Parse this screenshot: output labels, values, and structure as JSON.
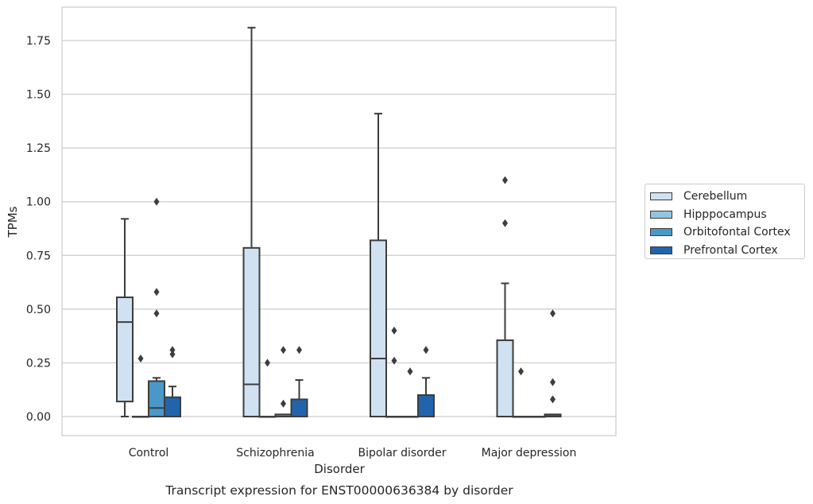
{
  "chart_data": {
    "type": "box",
    "title": "Transcript expression for ENST00000636384 by disorder",
    "xlabel": "Disorder",
    "ylabel": "TPMs",
    "ylim": [
      -0.09,
      1.9
    ],
    "yticks": [
      0.0,
      0.25,
      0.5,
      0.75,
      1.0,
      1.25,
      1.5,
      1.75
    ],
    "ytick_labels": [
      "0.00",
      "0.25",
      "0.50",
      "0.75",
      "1.00",
      "1.25",
      "1.50",
      "1.75"
    ],
    "categories": [
      "Control",
      "Schizophrenia",
      "Bipolar disorder",
      "Major depression"
    ],
    "grid": "horizontal",
    "legend_position": "right",
    "series": [
      {
        "name": "Cerebellum",
        "color": "#d0e1f2",
        "boxes": [
          {
            "whisker_low": 0.0,
            "q1": 0.07,
            "median": 0.44,
            "q3": 0.555,
            "whisker_high": 0.92,
            "outliers": []
          },
          {
            "whisker_low": 0.0,
            "q1": 0.0,
            "median": 0.15,
            "q3": 0.785,
            "whisker_high": 1.81,
            "outliers": []
          },
          {
            "whisker_low": 0.0,
            "q1": 0.0,
            "median": 0.27,
            "q3": 0.82,
            "whisker_high": 1.41,
            "outliers": []
          },
          {
            "whisker_low": 0.0,
            "q1": 0.0,
            "median": 0.0,
            "q3": 0.355,
            "whisker_high": 0.62,
            "outliers": [
              0.9,
              1.1
            ]
          }
        ]
      },
      {
        "name": "Hipppocampus",
        "color": "#94c4df",
        "boxes": [
          {
            "whisker_low": 0.0,
            "q1": 0.0,
            "median": 0.0,
            "q3": 0.0,
            "whisker_high": 0.0,
            "outliers": [
              0.27
            ]
          },
          {
            "whisker_low": 0.0,
            "q1": 0.0,
            "median": 0.0,
            "q3": 0.0,
            "whisker_high": 0.0,
            "outliers": [
              0.25
            ]
          },
          {
            "whisker_low": 0.0,
            "q1": 0.0,
            "median": 0.0,
            "q3": 0.0,
            "whisker_high": 0.0,
            "outliers": [
              0.26,
              0.4
            ]
          },
          {
            "whisker_low": 0.0,
            "q1": 0.0,
            "median": 0.0,
            "q3": 0.0,
            "whisker_high": 0.0,
            "outliers": [
              0.21
            ]
          }
        ]
      },
      {
        "name": "Orbitofontal Cortex",
        "color": "#4a98c9",
        "boxes": [
          {
            "whisker_low": 0.0,
            "q1": 0.0,
            "median": 0.04,
            "q3": 0.165,
            "whisker_high": 0.18,
            "outliers": [
              0.48,
              0.58,
              1.0
            ]
          },
          {
            "whisker_low": 0.0,
            "q1": 0.0,
            "median": 0.0,
            "q3": 0.01,
            "whisker_high": 0.01,
            "outliers": [
              0.06,
              0.31
            ]
          },
          {
            "whisker_low": 0.0,
            "q1": 0.0,
            "median": 0.0,
            "q3": 0.0,
            "whisker_high": 0.0,
            "outliers": [
              0.21
            ]
          },
          {
            "whisker_low": 0.0,
            "q1": 0.0,
            "median": 0.0,
            "q3": 0.0,
            "whisker_high": 0.0,
            "outliers": []
          }
        ]
      },
      {
        "name": "Prefrontal Cortex",
        "color": "#2164ab",
        "boxes": [
          {
            "whisker_low": 0.0,
            "q1": 0.0,
            "median": 0.0,
            "q3": 0.09,
            "whisker_high": 0.14,
            "outliers": [
              0.29,
              0.31
            ]
          },
          {
            "whisker_low": 0.0,
            "q1": 0.0,
            "median": 0.0,
            "q3": 0.08,
            "whisker_high": 0.17,
            "outliers": [
              0.31
            ]
          },
          {
            "whisker_low": 0.0,
            "q1": 0.0,
            "median": 0.0,
            "q3": 0.1,
            "whisker_high": 0.18,
            "outliers": [
              0.31
            ]
          },
          {
            "whisker_low": 0.0,
            "q1": 0.0,
            "median": 0.0,
            "q3": 0.01,
            "whisker_high": 0.01,
            "outliers": [
              0.08,
              0.16,
              0.48
            ]
          }
        ]
      }
    ]
  }
}
